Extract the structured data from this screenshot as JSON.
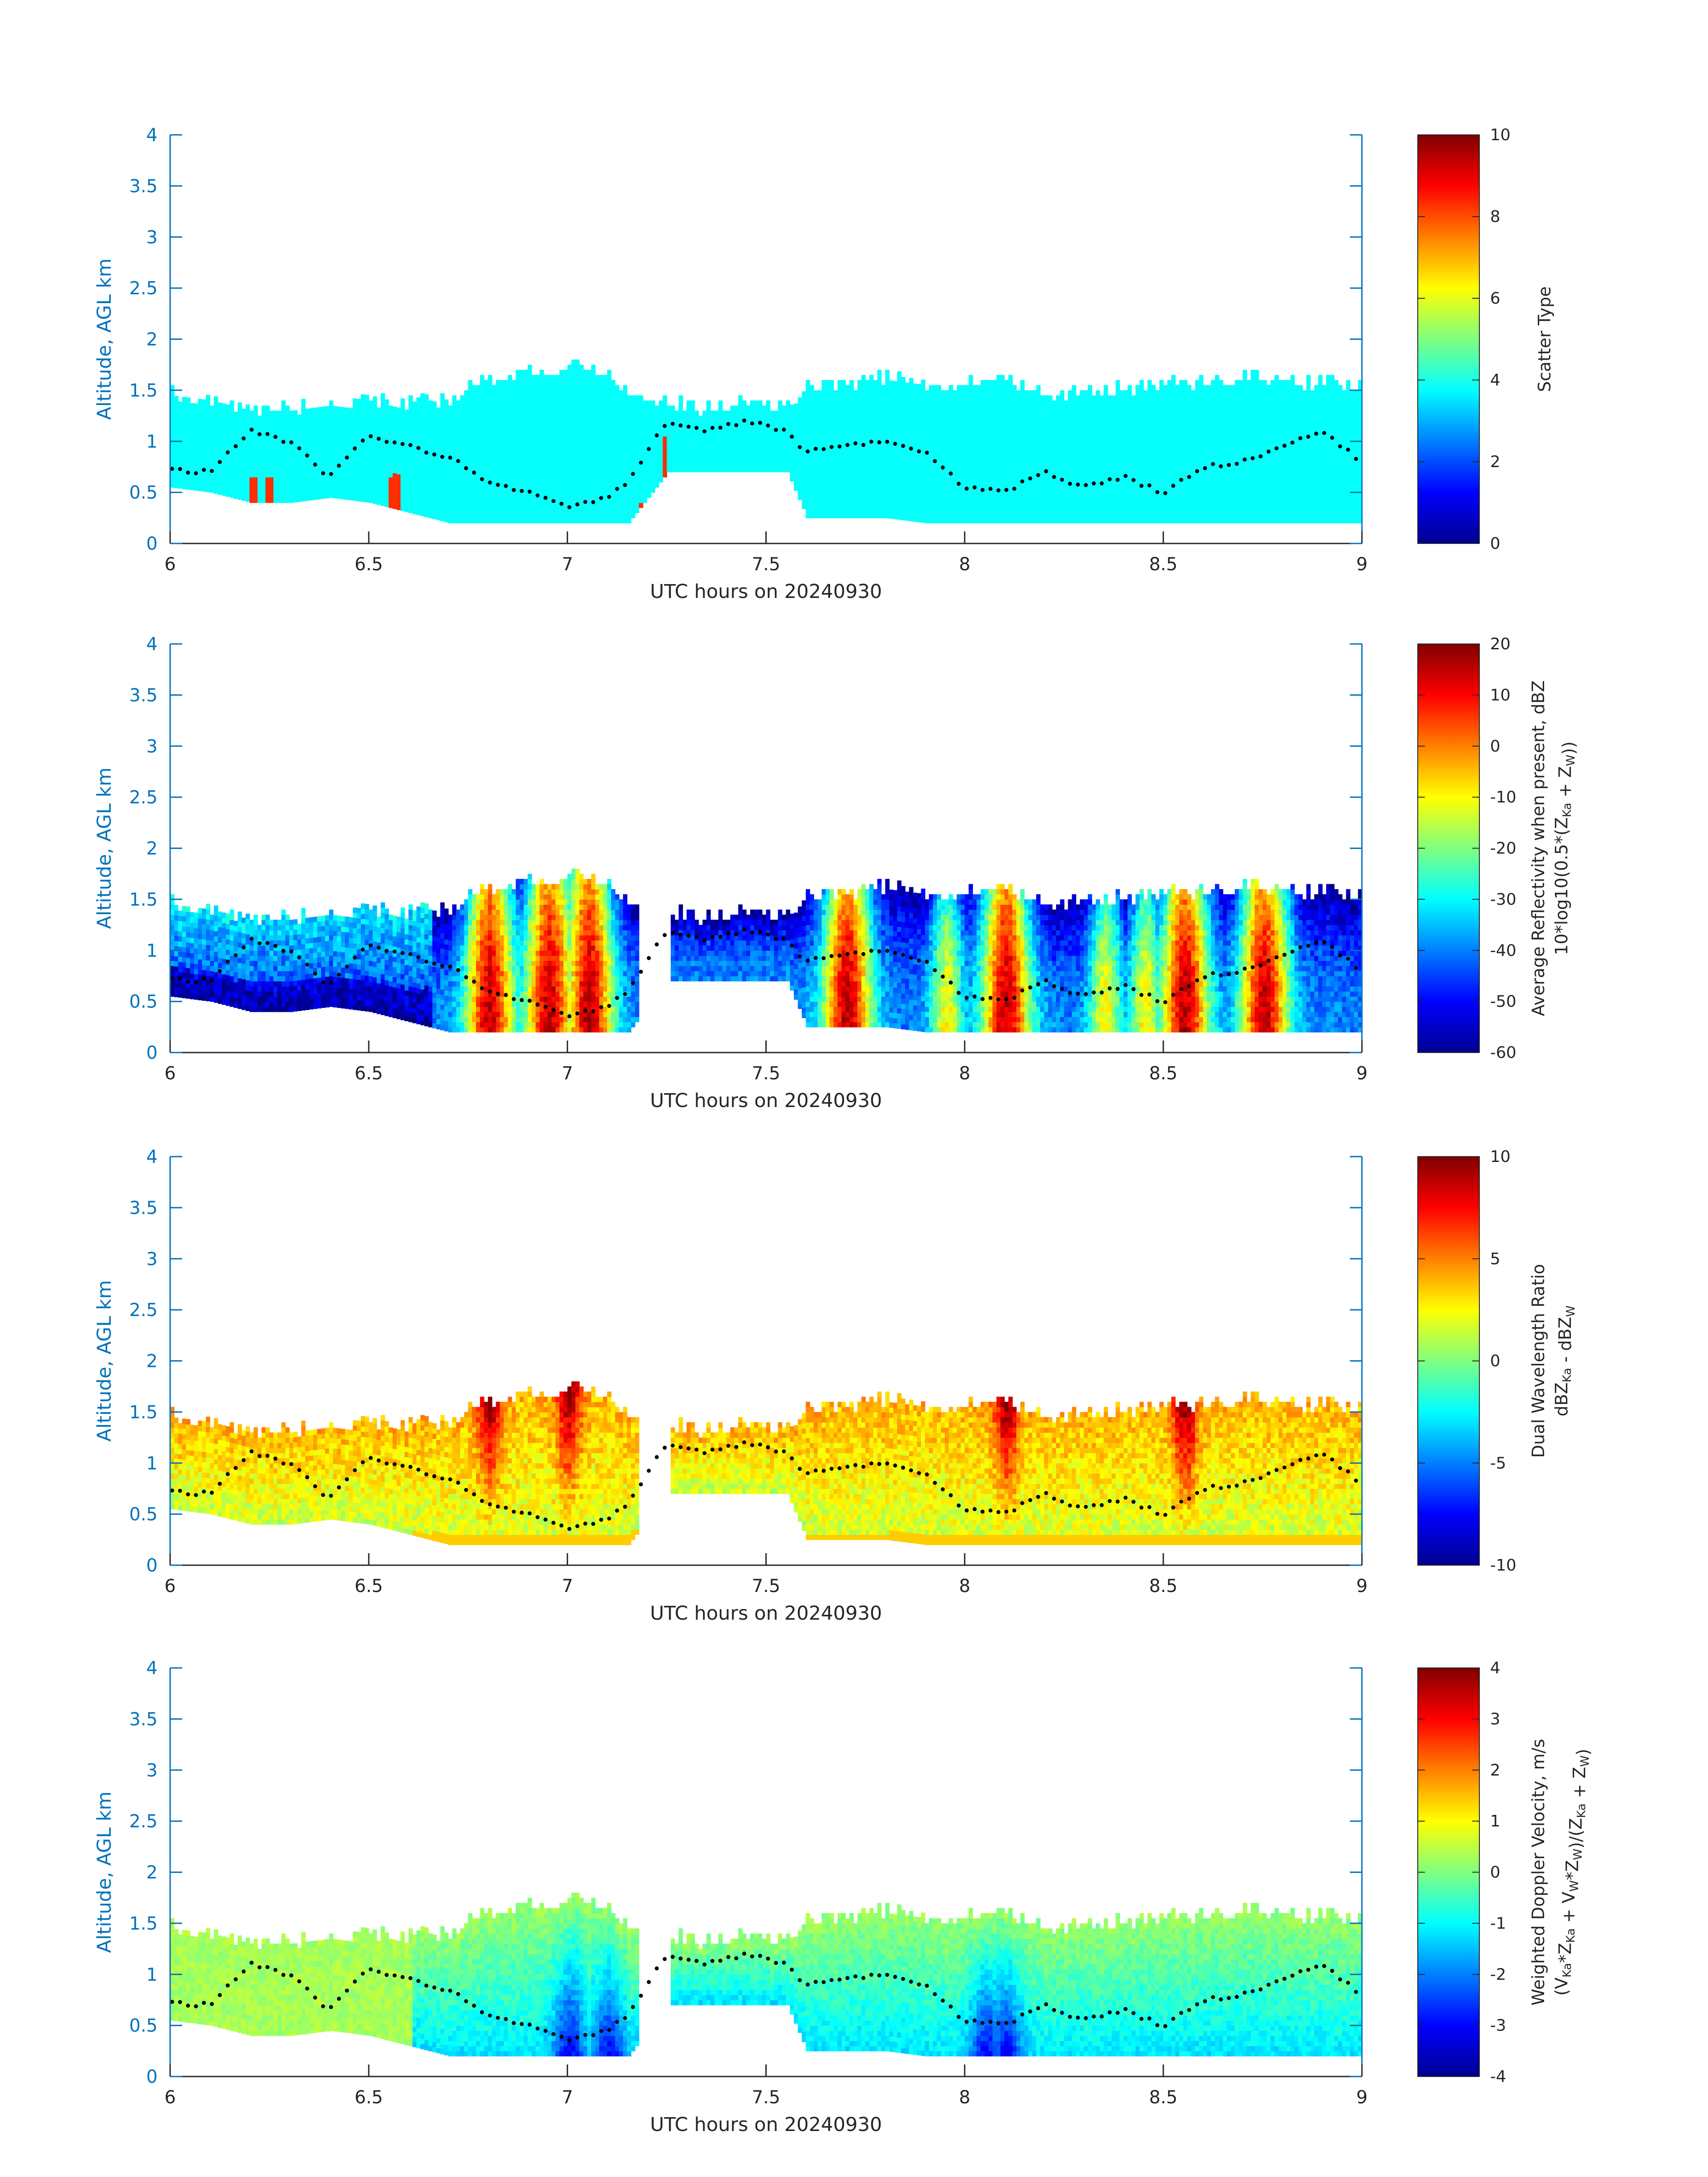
{
  "chart_data": [
    {
      "type": "heatmap",
      "xlabel": "UTC hours on 20240930",
      "ylabel": "Altitude, AGL km",
      "xlim": [
        6,
        9
      ],
      "ylim": [
        0,
        4
      ],
      "xticks": [
        "6",
        "6.5",
        "7",
        "7.5",
        "8",
        "8.5",
        "9"
      ],
      "yticks": [
        "0",
        "0.5",
        "1",
        "1.5",
        "2",
        "2.5",
        "3",
        "3.5",
        "4"
      ],
      "colorbar": {
        "label": "Scatter Type",
        "label_sub": "",
        "range": [
          0,
          10
        ],
        "ticks": [
          "0",
          "2",
          "4",
          "6",
          "8",
          "10"
        ]
      },
      "field": "scatter_type",
      "dominant_value": 3.8,
      "secondary_value": 8.3
    },
    {
      "type": "heatmap",
      "xlabel": "UTC hours on 20240930",
      "ylabel": "Altitude, AGL km",
      "xlim": [
        6,
        9
      ],
      "ylim": [
        0,
        4
      ],
      "xticks": [
        "6",
        "6.5",
        "7",
        "7.5",
        "8",
        "8.5",
        "9"
      ],
      "yticks": [
        "0",
        "0.5",
        "1",
        "1.5",
        "2",
        "2.5",
        "3",
        "3.5",
        "4"
      ],
      "colorbar": {
        "label": "Average Reflectivity when present, dBZ",
        "label_sub": "10*log10(0.5*(Z_Ka + Z_W))",
        "range": [
          -60,
          20
        ],
        "ticks": [
          "-60",
          "-50",
          "-40",
          "-30",
          "-20",
          "-10",
          "0",
          "10",
          "20"
        ]
      },
      "field": "reflectivity",
      "cores_x": [
        6.8,
        6.95,
        7.05,
        7.7,
        8.1,
        8.55,
        8.75
      ]
    },
    {
      "type": "heatmap",
      "xlabel": "UTC hours on 20240930",
      "ylabel": "Altitude, AGL km",
      "xlim": [
        6,
        9
      ],
      "ylim": [
        0,
        4
      ],
      "xticks": [
        "6",
        "6.5",
        "7",
        "7.5",
        "8",
        "8.5",
        "9"
      ],
      "yticks": [
        "0",
        "0.5",
        "1",
        "1.5",
        "2",
        "2.5",
        "3",
        "3.5",
        "4"
      ],
      "colorbar": {
        "label": "Dual Wavelength Ratio",
        "label_sub": "dBZ_Ka - dBZ_W",
        "range": [
          -10,
          10
        ],
        "ticks": [
          "-10",
          "-5",
          "0",
          "5",
          "10"
        ]
      },
      "field": "dwr",
      "cores_x": [
        6.8,
        7.0,
        8.1,
        8.55
      ]
    },
    {
      "type": "heatmap",
      "xlabel": "UTC hours on 20240930",
      "ylabel": "Altitude, AGL km",
      "xlim": [
        6,
        9
      ],
      "ylim": [
        0,
        4
      ],
      "xticks": [
        "6",
        "6.5",
        "7",
        "7.5",
        "8",
        "8.5",
        "9"
      ],
      "yticks": [
        "0",
        "0.5",
        "1",
        "1.5",
        "2",
        "2.5",
        "3",
        "3.5",
        "4"
      ],
      "colorbar": {
        "label": "Weighted Doppler Velocity, m/s",
        "label_sub": "(V_Ka*Z_Ka + V_W*Z_W)/(Z_Ka + Z_W)",
        "range": [
          -4,
          4
        ],
        "ticks": [
          "-4",
          "-3",
          "-2",
          "-1",
          "0",
          "1",
          "2",
          "3",
          "4"
        ]
      },
      "field": "velocity",
      "cores_x": [
        7.0,
        7.1,
        8.05,
        8.1
      ]
    }
  ],
  "cloud_top_profile": {
    "x": [
      6.0,
      6.1,
      6.2,
      6.3,
      6.4,
      6.5,
      6.6,
      6.7,
      6.8,
      6.9,
      7.0,
      7.1,
      7.15,
      7.25,
      7.35,
      7.45,
      7.55,
      7.6,
      7.7,
      7.8,
      7.9,
      8.0,
      8.1,
      8.2,
      8.3,
      8.4,
      8.5,
      8.6,
      8.7,
      8.8,
      8.9,
      9.0
    ],
    "top": [
      1.45,
      1.35,
      1.3,
      1.3,
      1.35,
      1.4,
      1.35,
      1.4,
      1.6,
      1.65,
      1.7,
      1.65,
      1.45,
      1.35,
      1.3,
      1.35,
      1.3,
      1.5,
      1.55,
      1.6,
      1.55,
      1.55,
      1.6,
      1.45,
      1.45,
      1.5,
      1.55,
      1.55,
      1.6,
      1.55,
      1.55,
      1.5
    ],
    "bottom": [
      0.55,
      0.5,
      0.4,
      0.4,
      0.45,
      0.4,
      0.3,
      0.2,
      0.2,
      0.2,
      0.2,
      0.2,
      0.2,
      0.7,
      0.7,
      0.7,
      0.7,
      0.25,
      0.25,
      0.25,
      0.2,
      0.2,
      0.2,
      0.2,
      0.2,
      0.2,
      0.2,
      0.2,
      0.2,
      0.2,
      0.2,
      0.2
    ]
  },
  "dotted_line": {
    "x": [
      6.0,
      6.1,
      6.2,
      6.3,
      6.4,
      6.5,
      6.6,
      6.7,
      6.8,
      6.9,
      7.0,
      7.1,
      7.15,
      7.25,
      7.35,
      7.45,
      7.55,
      7.6,
      7.7,
      7.8,
      7.9,
      8.0,
      8.1,
      8.2,
      8.3,
      8.4,
      8.5,
      8.6,
      8.7,
      8.8,
      8.9,
      9.0
    ],
    "y": [
      0.72,
      0.7,
      1.1,
      1.0,
      0.65,
      1.05,
      0.95,
      0.85,
      0.6,
      0.5,
      0.35,
      0.45,
      0.6,
      1.2,
      1.1,
      1.2,
      1.1,
      0.9,
      0.95,
      1.0,
      0.9,
      0.55,
      0.5,
      0.7,
      0.55,
      0.65,
      0.5,
      0.75,
      0.8,
      0.95,
      1.1,
      0.8
    ]
  }
}
